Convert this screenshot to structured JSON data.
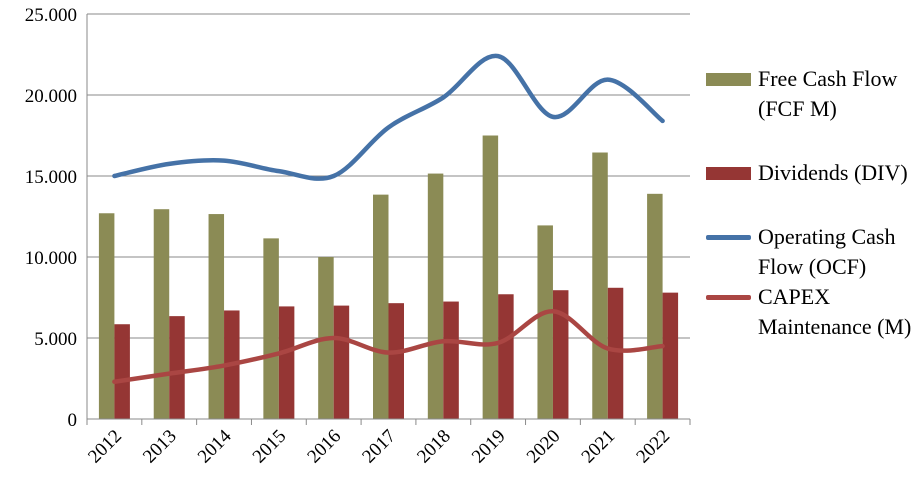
{
  "chart_data": {
    "type": "bar",
    "categories": [
      "2012",
      "2013",
      "2014",
      "2015",
      "2016",
      "2017",
      "2018",
      "2019",
      "2020",
      "2021",
      "2022"
    ],
    "ylim": [
      0,
      25000
    ],
    "yticks": [
      "0",
      "5.000",
      "10.000",
      "15.000",
      "20.000",
      "25.000"
    ],
    "ytick_values": [
      0,
      5000,
      10000,
      15000,
      20000,
      25000
    ],
    "grid": true,
    "legend_position": "right",
    "series": [
      {
        "name": "Free Cash Flow (FCF M)",
        "kind": "bar",
        "color": "#8b8b55",
        "values": [
          12700,
          12950,
          12650,
          11150,
          10000,
          13850,
          15150,
          17500,
          11950,
          16450,
          13900
        ]
      },
      {
        "name": "Dividends (DIV)",
        "kind": "bar",
        "color": "#953634",
        "values": [
          5850,
          6350,
          6700,
          6950,
          7000,
          7150,
          7250,
          7700,
          7950,
          8100,
          7800
        ]
      },
      {
        "name": "Operating Cash Flow (OCF)",
        "kind": "line",
        "color": "#4572a7",
        "values": [
          15000,
          15750,
          15950,
          15300,
          15000,
          18000,
          19850,
          22400,
          18650,
          20950,
          18400
        ]
      },
      {
        "name": "CAPEX Maintenance (M)",
        "kind": "line",
        "color": "#aa4643",
        "values": [
          2300,
          2800,
          3300,
          4050,
          5000,
          4100,
          4800,
          4700,
          6650,
          4350,
          4500
        ]
      }
    ]
  }
}
